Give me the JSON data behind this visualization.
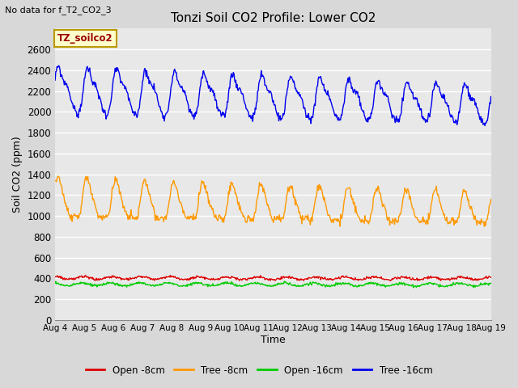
{
  "title": "Tonzi Soil CO2 Profile: Lower CO2",
  "subtitle": "No data for f_T2_CO2_3",
  "ylabel": "Soil CO2 (ppm)",
  "xlabel": "Time",
  "legend_box_label": "TZ_soilco2",
  "fig_bg_color": "#d8d8d8",
  "plot_bg_color": "#e8e8e8",
  "ylim": [
    0,
    2800
  ],
  "yticks": [
    0,
    200,
    400,
    600,
    800,
    1000,
    1200,
    1400,
    1600,
    1800,
    2000,
    2200,
    2400,
    2600
  ],
  "n_points": 720,
  "xtick_labels": [
    "Aug 4",
    "Aug 5",
    "Aug 6",
    "Aug 7",
    "Aug 8",
    "Aug 9",
    "Aug 10",
    "Aug 11",
    "Aug 12",
    "Aug 13",
    "Aug 14",
    "Aug 15",
    "Aug 16",
    "Aug 17",
    "Aug 18",
    "Aug 19"
  ],
  "series": {
    "open_8cm": {
      "color": "#dd0000",
      "label": "Open -8cm"
    },
    "tree_8cm": {
      "color": "#ff9900",
      "label": "Tree -8cm"
    },
    "open_16cm": {
      "color": "#00cc00",
      "label": "Open -16cm"
    },
    "tree_16cm": {
      "color": "#0000ee",
      "label": "Tree -16cm"
    }
  },
  "legend_items": [
    {
      "label": "Open -8cm",
      "color": "#dd0000"
    },
    {
      "label": "Tree -8cm",
      "color": "#ff9900"
    },
    {
      "label": "Open -16cm",
      "color": "#00cc00"
    },
    {
      "label": "Tree -16cm",
      "color": "#0000ee"
    }
  ]
}
